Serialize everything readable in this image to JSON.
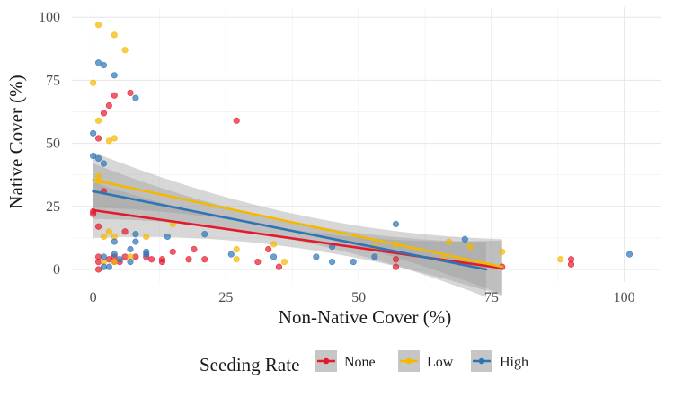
{
  "chart_data": {
    "type": "scatter",
    "xlabel": "Non-Native Cover (%)",
    "ylabel": "Native Cover (%)",
    "xlim": [
      -4,
      107
    ],
    "ylim": [
      -5,
      104
    ],
    "x_ticks": [
      0,
      25,
      50,
      75,
      100
    ],
    "y_ticks": [
      0,
      25,
      50,
      75,
      100
    ],
    "x_tick_labels": [
      "0",
      "25",
      "50",
      "75",
      "100"
    ],
    "y_tick_labels": [
      "0",
      "25",
      "50",
      "75",
      "100"
    ],
    "grid": true,
    "legend": {
      "title": "Seeding Rate",
      "position": "bottom",
      "entries": [
        "None",
        "Low",
        "High"
      ]
    },
    "series": [
      {
        "name": "None",
        "color": "#E41A2B",
        "points": [
          [
            0,
            22
          ],
          [
            0,
            23
          ],
          [
            1,
            17
          ],
          [
            1,
            52
          ],
          [
            1,
            0
          ],
          [
            1,
            3
          ],
          [
            1,
            5
          ],
          [
            2,
            31
          ],
          [
            2,
            62
          ],
          [
            3,
            65
          ],
          [
            3,
            4
          ],
          [
            4,
            69
          ],
          [
            4,
            5
          ],
          [
            4,
            3
          ],
          [
            5,
            3
          ],
          [
            6,
            15
          ],
          [
            6,
            5
          ],
          [
            7,
            70
          ],
          [
            8,
            5
          ],
          [
            10,
            5
          ],
          [
            11,
            4
          ],
          [
            13,
            3
          ],
          [
            13,
            4
          ],
          [
            15,
            7
          ],
          [
            18,
            4
          ],
          [
            19,
            8
          ],
          [
            21,
            4
          ],
          [
            27,
            59
          ],
          [
            31,
            3
          ],
          [
            33,
            8
          ],
          [
            35,
            1
          ],
          [
            57,
            4
          ],
          [
            57,
            1
          ],
          [
            77,
            1
          ],
          [
            90,
            2
          ],
          [
            90,
            4
          ]
        ],
        "fit": {
          "x": [
            0,
            77
          ],
          "y": [
            23.5,
            0.5
          ]
        }
      },
      {
        "name": "Low",
        "color": "#F5B800",
        "points": [
          [
            0,
            74
          ],
          [
            1,
            97
          ],
          [
            1,
            35
          ],
          [
            1,
            37
          ],
          [
            1,
            59
          ],
          [
            2,
            13
          ],
          [
            2,
            3
          ],
          [
            3,
            51
          ],
          [
            3,
            15
          ],
          [
            4,
            52
          ],
          [
            4,
            93
          ],
          [
            4,
            13
          ],
          [
            4,
            3
          ],
          [
            6,
            87
          ],
          [
            7,
            5
          ],
          [
            10,
            13
          ],
          [
            15,
            18
          ],
          [
            27,
            4
          ],
          [
            27,
            8
          ],
          [
            34,
            10
          ],
          [
            36,
            3
          ],
          [
            53,
            9
          ],
          [
            57,
            10
          ],
          [
            66,
            4
          ],
          [
            67,
            11
          ],
          [
            70,
            3
          ],
          [
            71,
            9
          ],
          [
            77,
            7
          ],
          [
            88,
            4
          ]
        ],
        "fit": {
          "x": [
            0,
            77
          ],
          "y": [
            35.5,
            1.0
          ]
        }
      },
      {
        "name": "High",
        "color": "#2E75B6",
        "points": [
          [
            0,
            45
          ],
          [
            0,
            54
          ],
          [
            1,
            82
          ],
          [
            1,
            44
          ],
          [
            2,
            81
          ],
          [
            2,
            42
          ],
          [
            2,
            5
          ],
          [
            2,
            1
          ],
          [
            3,
            1
          ],
          [
            4,
            77
          ],
          [
            4,
            11
          ],
          [
            4,
            6
          ],
          [
            5,
            4
          ],
          [
            7,
            3
          ],
          [
            7,
            8
          ],
          [
            8,
            68
          ],
          [
            8,
            14
          ],
          [
            8,
            11
          ],
          [
            10,
            7
          ],
          [
            10,
            6
          ],
          [
            14,
            13
          ],
          [
            21,
            14
          ],
          [
            26,
            6
          ],
          [
            34,
            5
          ],
          [
            42,
            5
          ],
          [
            45,
            9
          ],
          [
            45,
            3
          ],
          [
            49,
            3
          ],
          [
            53,
            5
          ],
          [
            57,
            18
          ],
          [
            70,
            12
          ],
          [
            101,
            6
          ]
        ],
        "fit": {
          "x": [
            0,
            74
          ],
          "y": [
            31,
            0
          ]
        }
      }
    ]
  }
}
